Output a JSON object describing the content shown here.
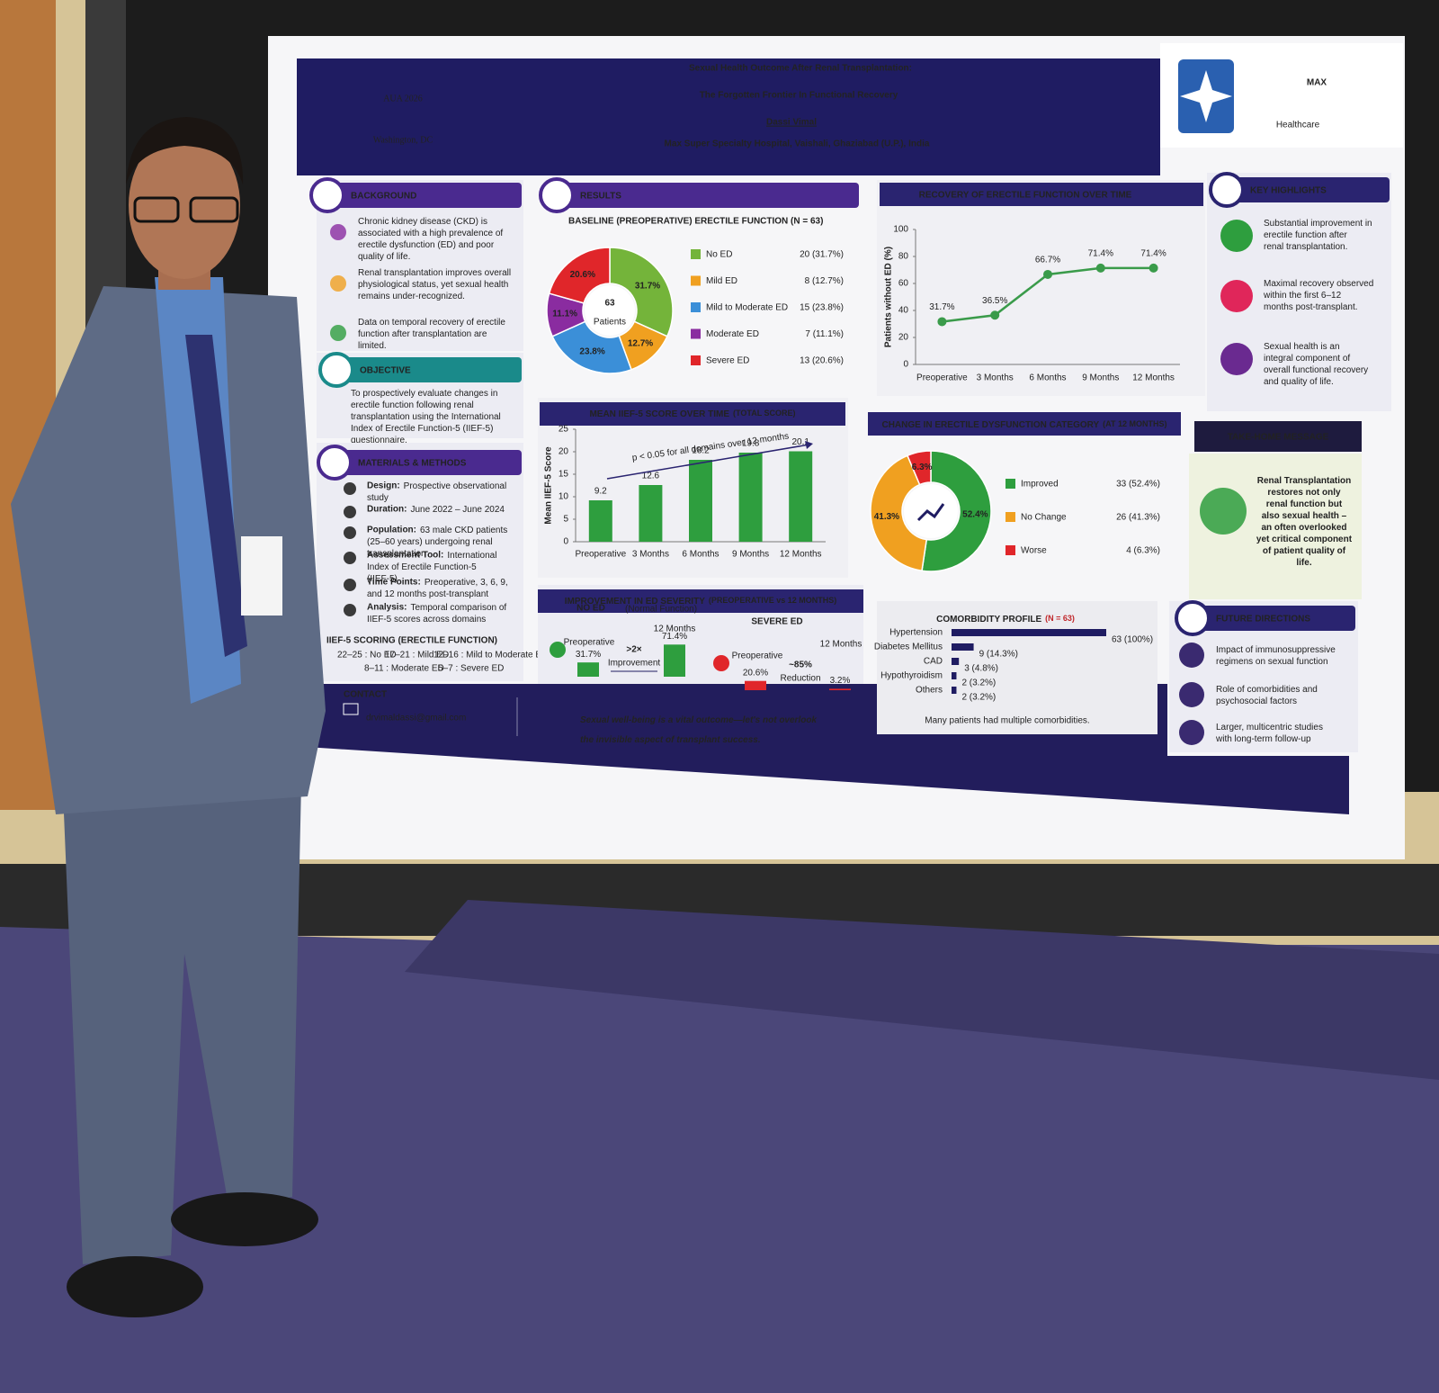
{
  "poster": {
    "header": {
      "conference": "AUA 2026",
      "location": "Washington, DC",
      "title": [
        "Sexual Health Outcome After Renal Transplantation:",
        "The Forgotten Frontier In Functional Recovery"
      ],
      "author": "Dassi Vimal",
      "affiliation": "Max Super Specialty Hospital, Vaishali, Ghaziabad (U.P.), India",
      "logo_name": "MAX",
      "logo_sub": "Healthcare"
    },
    "background": {
      "heading": "BACKGROUND",
      "items": [
        "Chronic kidney disease (CKD) is associated with a high prevalence of erectile dysfunction (ED) and poor quality of life.",
        "Renal transplantation improves overall physiological status, yet sexual health remains under-recognized.",
        "Data on temporal recovery of erectile function after transplantation are limited."
      ]
    },
    "objective": {
      "heading": "OBJECTIVE",
      "text": "To prospectively evaluate changes in erectile function following renal transplantation using the International Index of Erectile Function-5 (IIEF-5) questionnaire."
    },
    "methods": {
      "heading": "MATERIALS & METHODS",
      "items": [
        {
          "label": "Design:",
          "text": "Prospective observational study"
        },
        {
          "label": "Duration:",
          "text": "June 2022 – June 2024"
        },
        {
          "label": "Population:",
          "text": "63 male CKD patients (25–60 years) undergoing renal transplantation"
        },
        {
          "label": "Assessment Tool:",
          "text": "International Index of Erectile Function-5 (IIEF-5)"
        },
        {
          "label": "Time Points:",
          "text": "Preoperative, 3, 6, 9, and 12 months post-transplant"
        },
        {
          "label": "Analysis:",
          "text": "Temporal comparison of IIEF-5 scores across domains"
        }
      ],
      "scoring_heading": "IIEF-5 SCORING (ERECTILE FUNCTION)",
      "scoring": [
        "22–25 : No ED",
        "17–21 : Mild ED",
        "12–16 : Mild to Moderate ED",
        "8–11 : Moderate ED",
        "5–7 : Severe ED"
      ]
    },
    "results": {
      "heading": "RESULTS"
    },
    "improvement": {
      "heading": "IMPROVEMENT IN ED SEVERITY",
      "subtitle": "(PREOPERATIVE vs 12 MONTHS)"
    },
    "key_highlights": {
      "heading": "KEY HIGHLIGHTS",
      "items": [
        "Substantial improvement in erectile function after renal transplantation.",
        "Maximal recovery observed within the first 6–12 months post-transplant.",
        "Sexual health is an integral component of overall functional recovery and quality of life."
      ]
    },
    "take_home": {
      "heading": "TAKE-HOME MESSAGE",
      "text": "Renal Transplantation restores not only renal function but also sexual health – an often overlooked yet critical component of patient quality of life."
    },
    "future": {
      "heading": "FUTURE DIRECTIONS",
      "items": [
        "Impact of immunosuppressive regimens on sexual function",
        "Role of comorbidities and psychosocial factors",
        "Larger, multicentric studies with long-term follow-up"
      ]
    },
    "contact": {
      "heading": "CONTACT",
      "email": "drvimaldassi@gmail.com"
    },
    "quote": "Sexual well-being is a vital outcome—let's not overlook the invisible aspect of transplant success."
  },
  "chart_data": [
    {
      "type": "pie",
      "title": "BASELINE (PREOPERATIVE) ERECTILE FUNCTION (N = 63)",
      "total": 63,
      "center_label": "Patients",
      "categories": [
        "No ED",
        "Mild ED",
        "Mild to Moderate ED",
        "Moderate ED",
        "Severe ED"
      ],
      "values": [
        20,
        8,
        15,
        7,
        13
      ],
      "value_labels": [
        "20 (31.7%)",
        "8 (12.7%)",
        "15 (23.8%)",
        "7 (11.1%)",
        "13 (20.6%)"
      ],
      "percent_labels": [
        "31.7%",
        "12.7%",
        "23.8%",
        "11.1%",
        "20.6%"
      ],
      "colors": [
        "#74b43a",
        "#f0a020",
        "#3b8fd8",
        "#8a2ca0",
        "#e0262a"
      ]
    },
    {
      "type": "line",
      "title": "RECOVERY OF ERECTILE FUNCTION OVER TIME",
      "ylabel": "Patients without ED (%)",
      "categories": [
        "Preoperative",
        "3 Months",
        "6 Months",
        "9 Months",
        "12 Months"
      ],
      "values": [
        31.7,
        36.5,
        66.7,
        71.4,
        71.4
      ],
      "value_labels": [
        "31.7%",
        "36.5%",
        "66.7%",
        "71.4%",
        "71.4%"
      ],
      "ylim": [
        0,
        100
      ],
      "yticks": [
        0,
        20,
        40,
        60,
        80,
        100
      ],
      "color": "#3a9b4a"
    },
    {
      "type": "bar",
      "title": "MEAN IIEF-5 SCORE OVER TIME",
      "subtitle": "(TOTAL SCORE)",
      "ylabel": "Mean IIEF-5 Score",
      "categories": [
        "Preoperative",
        "3 Months",
        "6 Months",
        "9 Months",
        "12 Months"
      ],
      "values": [
        9.2,
        12.6,
        18.2,
        19.8,
        20.1
      ],
      "ylim": [
        0,
        25
      ],
      "yticks": [
        0,
        5,
        10,
        15,
        20,
        25
      ],
      "color": "#2e9e3e",
      "annotation": "p < 0.05 for all domains over 12 months"
    },
    {
      "type": "donut",
      "title": "CHANGE IN ERECTILE DYSFUNCTION CATEGORY",
      "subtitle": "(AT 12 MONTHS)",
      "categories": [
        "Improved",
        "No Change",
        "Worse"
      ],
      "values": [
        33,
        26,
        4
      ],
      "value_labels": [
        "33 (52.4%)",
        "26 (41.3%)",
        "4 (6.3%)"
      ],
      "percent_labels": [
        "52.4%",
        "41.3%",
        "6.3%"
      ],
      "colors": [
        "#2e9e3e",
        "#f0a020",
        "#e0262a"
      ]
    },
    {
      "type": "hbar",
      "title": "COMORBIDITY PROFILE",
      "subtitle": "(N = 63)",
      "categories": [
        "Hypertension",
        "Diabetes Mellitus",
        "CAD",
        "Hypothyroidism",
        "Others"
      ],
      "values": [
        63,
        9,
        3,
        2,
        2
      ],
      "value_labels": [
        "63 (100%)",
        "9 (14.3%)",
        "3 (4.8%)",
        "2 (3.2%)",
        "2 (3.2%)"
      ],
      "color": "#1f1c62",
      "note": "Many patients had multiple comorbidities."
    },
    {
      "type": "mini-bar",
      "title": "NO ED",
      "subtitle": "(Normal Function)",
      "categories": [
        "Preoperative",
        "12 Months"
      ],
      "values": [
        31.7,
        71.4
      ],
      "value_labels": [
        "31.7%",
        "71.4%"
      ],
      "color": "#2e9e3e",
      "change": ">2×",
      "change_label": "Improvement"
    },
    {
      "type": "mini-bar",
      "title": "SEVERE ED",
      "categories": [
        "Preoperative",
        "12 Months"
      ],
      "values": [
        20.6,
        3.2
      ],
      "value_labels": [
        "20.6%",
        "3.2%"
      ],
      "color": "#e0262a",
      "change": "~85%",
      "change_label": "Reduction"
    }
  ]
}
